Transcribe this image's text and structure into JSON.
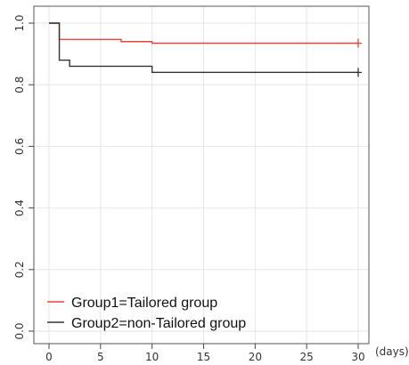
{
  "chart_data": {
    "type": "line",
    "title": "",
    "xlabel": "",
    "ylabel": "",
    "x_unit_label": "(days)",
    "xlim": [
      0,
      30
    ],
    "ylim": [
      0,
      1
    ],
    "x_ticks": [
      0,
      5,
      10,
      15,
      20,
      25,
      30
    ],
    "y_ticks": [
      0.0,
      0.2,
      0.4,
      0.6,
      0.8,
      1.0
    ],
    "x_tick_labels": [
      "0",
      "5",
      "10",
      "15",
      "20",
      "25",
      "30"
    ],
    "y_tick_labels": [
      "0.0",
      "0.2",
      "0.4",
      "0.6",
      "0.8",
      "1.0"
    ],
    "grid": true,
    "legend_position": "bottom-left",
    "step": true,
    "series": [
      {
        "name": "Group1=Tailored group",
        "color": "#e8443a",
        "points": [
          [
            0,
            1.0
          ],
          [
            1,
            0.947
          ],
          [
            7,
            0.94
          ],
          [
            10,
            0.935
          ],
          [
            30,
            0.935
          ]
        ],
        "censor": [
          [
            30,
            0.935
          ]
        ]
      },
      {
        "name": "Group2=non-Tailored group",
        "color": "#333333",
        "points": [
          [
            0,
            1.0
          ],
          [
            1,
            0.88
          ],
          [
            2,
            0.86
          ],
          [
            10,
            0.84
          ],
          [
            30,
            0.84
          ]
        ],
        "censor": [
          [
            30,
            0.84
          ]
        ]
      }
    ]
  }
}
